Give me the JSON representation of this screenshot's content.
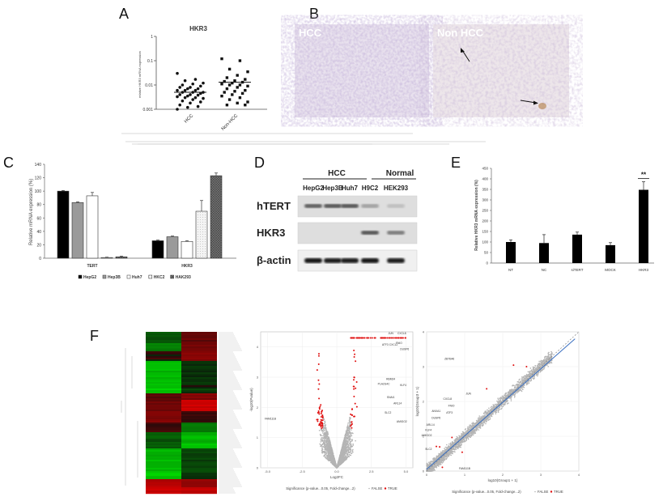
{
  "panels": {
    "A": "A",
    "B": "B",
    "C": "C",
    "D": "D",
    "E": "E",
    "F": "F"
  },
  "panel_b": {
    "left_label": "HCC",
    "right_label": "Non HCC"
  },
  "panel_d": {
    "group_hcc": "HCC",
    "group_normal": "Normal",
    "lanes": [
      "HepG2",
      "Hep3B",
      "Huh7",
      "H9C2",
      "HEK293"
    ],
    "rows": [
      "hTERT",
      "HKR3",
      "β-actin"
    ],
    "band_intensity": {
      "hTERT": [
        0.55,
        0.6,
        0.6,
        0.2,
        0.05
      ],
      "HKR3": [
        0.0,
        0.0,
        0.0,
        0.6,
        0.4
      ],
      "β-actin": [
        0.95,
        0.9,
        0.9,
        0.95,
        0.9
      ]
    }
  },
  "chart_data": [
    {
      "id": "A",
      "type": "scatter",
      "title": "HKR3",
      "ylabel": "relative HKR3 mRNA expression",
      "yscale": "log",
      "ylim": [
        0.001,
        1
      ],
      "yticks": [
        "0.001",
        "0.01",
        "0.1",
        "1"
      ],
      "categories": [
        "HCC",
        "Non-HCC"
      ],
      "medians": [
        0.005,
        0.013
      ],
      "points": [
        [
          0.03,
          0.017,
          0.015,
          0.012,
          0.011,
          0.01,
          0.009,
          0.008,
          0.008,
          0.007,
          0.007,
          0.006,
          0.006,
          0.006,
          0.005,
          0.005,
          0.005,
          0.0045,
          0.004,
          0.004,
          0.0038,
          0.0035,
          0.0033,
          0.003,
          0.003,
          0.0028,
          0.0025,
          0.0022,
          0.002,
          0.0018,
          0.0015,
          0.0013,
          0.0012,
          0.001
        ],
        [
          0.12,
          0.1,
          0.045,
          0.035,
          0.025,
          0.02,
          0.017,
          0.015,
          0.014,
          0.013,
          0.012,
          0.011,
          0.01,
          0.01,
          0.009,
          0.008,
          0.007,
          0.006,
          0.0055,
          0.005,
          0.0045,
          0.004,
          0.0035,
          0.003,
          0.0025,
          0.002,
          0.0018,
          0.0015,
          0.0015
        ]
      ]
    },
    {
      "id": "C",
      "type": "bar",
      "ylabel": "Relative mRNA expression (%)",
      "ylim": [
        0,
        140
      ],
      "yticks": [
        "0",
        "20",
        "40",
        "60",
        "80",
        "100",
        "120",
        "140"
      ],
      "categories": [
        "TERT",
        "HKR3"
      ],
      "series": [
        {
          "name": "HepG2",
          "values": [
            100,
            26
          ],
          "errors": [
            1,
            1
          ],
          "color": "#000000"
        },
        {
          "name": "Hep3B",
          "values": [
            83,
            32
          ],
          "errors": [
            1,
            1
          ],
          "color": "#9a9a9a"
        },
        {
          "name": "Huh7",
          "values": [
            93,
            25
          ],
          "errors": [
            5,
            1
          ],
          "color": "#ffffff"
        },
        {
          "name": "HKC2",
          "values": [
            1,
            70
          ],
          "errors": [
            0.5,
            16
          ],
          "color": "#f0f0f0"
        },
        {
          "name": "HAK293",
          "values": [
            2,
            123
          ],
          "errors": [
            1,
            4
          ],
          "color": "#707070"
        }
      ],
      "legend": "bottom"
    },
    {
      "id": "E",
      "type": "bar",
      "ylabel": "Relative HKR3 mRNA expression (%)",
      "ylim": [
        0,
        450
      ],
      "yticks": [
        "0",
        "50",
        "100",
        "150",
        "200",
        "250",
        "300",
        "350",
        "400",
        "450"
      ],
      "categories": [
        "NT",
        "NC",
        "siTERT",
        "MOCK",
        "HKR3"
      ],
      "values": [
        100,
        95,
        135,
        85,
        348
      ],
      "errors": [
        10,
        40,
        12,
        12,
        38
      ],
      "annotation": "**",
      "color": "#000000"
    },
    {
      "id": "F-heatmap",
      "type": "heatmap",
      "colors": {
        "high": "#d01010",
        "low": "#20d020",
        "mid": "#000000"
      }
    },
    {
      "id": "F-volcano",
      "type": "scatter",
      "xlabel": "Log2FC",
      "ylabel": "-log10(Pvalue)",
      "xlim": [
        -5.5,
        5.5
      ],
      "ylim": [
        0,
        4.5
      ],
      "xticks": [
        "-5.0",
        "-2.5",
        "0.0",
        "2.5",
        "5.0"
      ],
      "yticks": [
        "0",
        "1",
        "2",
        "3",
        "4"
      ],
      "gene_labels": [
        "JUN",
        "ATF3",
        "CXCL2",
        "CXCL8",
        "FNIO",
        "DUSP6",
        "RBM24",
        "PLA2G4C",
        "KLF4",
        "ARL14",
        "SNAI1",
        "SLC2",
        "AMIGO2",
        "FAM111B"
      ],
      "legend": {
        "title": "Significance (p-value...0.05, Fold-change...2)",
        "items": [
          "FALSE",
          "TRUE"
        ]
      },
      "series_colors": {
        "FALSE": "#b4b4b4",
        "TRUE": "#e01010"
      }
    },
    {
      "id": "F-scatter",
      "type": "scatter",
      "xlabel": "log10(Group1 + 1)",
      "ylabel": "log10(Group3 + 1)",
      "xlim": [
        0,
        4
      ],
      "ylim": [
        0,
        4
      ],
      "xticks": [
        "0",
        "1",
        "2",
        "3",
        "4"
      ],
      "yticks": [
        "0",
        "1",
        "2",
        "3",
        "4"
      ],
      "gene_labels": [
        "ZBTB46",
        "JUN",
        "CXCL8",
        "FNIO",
        "ATF3",
        "ANXA1",
        "DUSP6",
        "ARL14",
        "KLF4",
        "AMIGO2",
        "SLC2",
        "FAM111B"
      ],
      "legend": {
        "title": "Significance (p-value...0.05, Fold-change...2)",
        "items": [
          "FALSE",
          "TRUE"
        ]
      },
      "series_colors": {
        "FALSE": "#b4b4b4",
        "TRUE": "#e01010"
      },
      "fit_color": "#3a6fc0"
    }
  ]
}
